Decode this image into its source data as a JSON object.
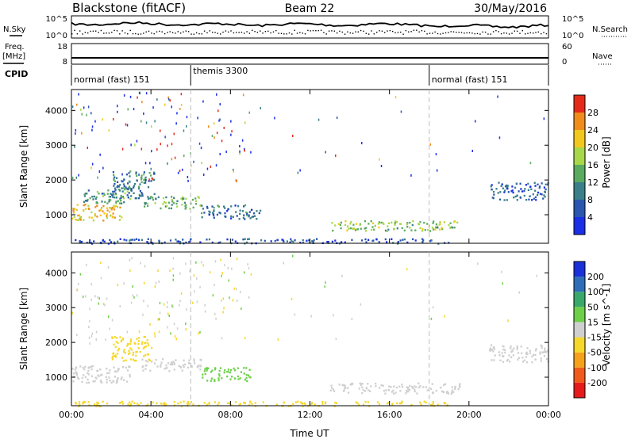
{
  "header": {
    "radar": "Blackstone (fitACF)",
    "beam": "Beam 22",
    "date": "30/May/2016"
  },
  "noise_panel": {
    "left_label": "N.Sky",
    "left_ticks": [
      "10^5",
      "10^0"
    ],
    "right_ticks": [
      "10^5",
      "10^0"
    ],
    "right_label": "N.Search"
  },
  "freq_panel": {
    "left_label_line1": "Freq.",
    "left_label_line2": "[MHz]",
    "left_ticks": [
      "18",
      "8"
    ],
    "right_ticks": [
      "60",
      "0"
    ],
    "right_label": "Nave"
  },
  "cpid_panel": {
    "label": "CPID",
    "segments": [
      {
        "label": "normal (fast) 151",
        "start_hour": 0
      },
      {
        "label": "themis 3300",
        "start_hour": 6
      },
      {
        "label": "normal (fast) 151",
        "start_hour": 18
      }
    ]
  },
  "colors": {
    "power_scale": [
      "#1a2fe6",
      "#2a56b0",
      "#3b7f8a",
      "#5aaa60",
      "#a8d84a",
      "#f2c81e",
      "#f08c1c",
      "#e62a1a"
    ],
    "velocity_scale": [
      "#e61a1a",
      "#f05a1a",
      "#f5a21a",
      "#f5d82a",
      "#cfcfcf",
      "#6ed04a",
      "#3aa86a",
      "#2e6eb8",
      "#1a30d8"
    ]
  },
  "chart_data": [
    {
      "type": "heatmap",
      "title": "",
      "xlabel": "",
      "ylabel": "Slant Range [km]",
      "xlim": [
        0,
        24
      ],
      "ylim": [
        180,
        4600
      ],
      "x_tick_hours": [
        0,
        4,
        8,
        12,
        16,
        20,
        24
      ],
      "y_ticks": [
        "1000",
        "2000",
        "3000",
        "4000"
      ],
      "y_tick_values": [
        1000,
        2000,
        3000,
        4000
      ],
      "colorbar": {
        "label": "Power [dB]",
        "tick_labels": [
          "4",
          "8",
          "12",
          "16",
          "20",
          "24",
          "28"
        ],
        "range": [
          0,
          32
        ]
      },
      "scatter_regions": [
        {
          "t0": 0.0,
          "t1": 2.5,
          "r0": 850,
          "r1": 1350,
          "value": 22
        },
        {
          "t0": 0.5,
          "t1": 3.0,
          "r0": 1350,
          "r1": 1800,
          "value": 12
        },
        {
          "t0": 2.0,
          "t1": 4.2,
          "r0": 1500,
          "r1": 2300,
          "value": 9
        },
        {
          "t0": 3.5,
          "t1": 6.5,
          "r0": 1200,
          "r1": 1550,
          "value": 14
        },
        {
          "t0": 6.5,
          "t1": 9.5,
          "r0": 900,
          "r1": 1300,
          "value": 8
        },
        {
          "t0": 13.0,
          "t1": 19.5,
          "r0": 550,
          "r1": 850,
          "value": 16
        },
        {
          "t0": 21.0,
          "t1": 24.0,
          "r0": 1450,
          "r1": 1950,
          "value": 7
        },
        {
          "t0": 0.0,
          "t1": 19.0,
          "r0": 190,
          "r1": 330,
          "value": 6
        }
      ]
    },
    {
      "type": "heatmap",
      "title": "",
      "xlabel": "Time UT",
      "ylabel": "Slant Range [km]",
      "xlim": [
        0,
        24
      ],
      "ylim": [
        180,
        4600
      ],
      "x_tick_labels": [
        "00:00",
        "04:00",
        "08:00",
        "12:00",
        "16:00",
        "20:00",
        "00:00"
      ],
      "x_tick_hours": [
        0,
        4,
        8,
        12,
        16,
        20,
        24
      ],
      "y_ticks": [
        "1000",
        "2000",
        "3000",
        "4000"
      ],
      "y_tick_values": [
        1000,
        2000,
        3000,
        4000
      ],
      "colorbar": {
        "label": "Velocity [m s^-1]",
        "tick_labels": [
          "-200",
          "-100",
          "-50",
          "-15",
          "15",
          "50",
          "100",
          "200"
        ]
      },
      "scatter_regions": [
        {
          "t0": 0.0,
          "t1": 3.0,
          "r0": 850,
          "r1": 1350,
          "value": 0
        },
        {
          "t0": 2.0,
          "t1": 4.0,
          "r0": 1500,
          "r1": 2200,
          "value": -40
        },
        {
          "t0": 3.5,
          "t1": 6.5,
          "r0": 1200,
          "r1": 1550,
          "value": 10
        },
        {
          "t0": 6.5,
          "t1": 9.0,
          "r0": 900,
          "r1": 1300,
          "value": 30
        },
        {
          "t0": 13.0,
          "t1": 19.5,
          "r0": 550,
          "r1": 850,
          "value": 0
        },
        {
          "t0": 21.0,
          "t1": 24.0,
          "r0": 1450,
          "r1": 1950,
          "value": 0
        },
        {
          "t0": 0.0,
          "t1": 19.0,
          "r0": 190,
          "r1": 330,
          "value": -30
        }
      ]
    }
  ]
}
